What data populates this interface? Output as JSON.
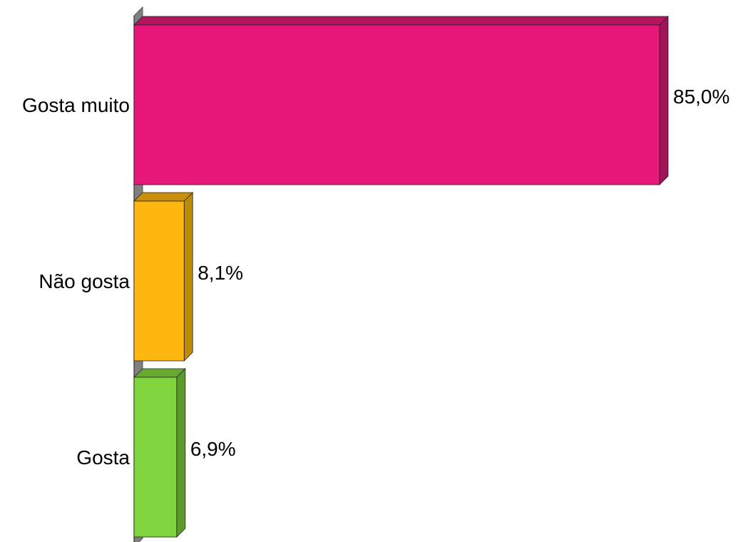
{
  "chart_data": {
    "type": "bar",
    "orientation": "horizontal",
    "style": "3d",
    "title": "",
    "xlabel": "",
    "ylabel": "",
    "grid": false,
    "legend": "none",
    "xlim": [
      0,
      85
    ],
    "categories": [
      "Gosta muito",
      "Não gosta",
      "Gosta"
    ],
    "values": [
      85.0,
      8.1,
      6.9
    ],
    "data_labels": [
      "85,0%",
      "8,1%",
      "6,9%"
    ],
    "colors": [
      "#E8177A",
      "#FFB60F",
      "#80D43D"
    ],
    "side_colors": [
      "#A0145A",
      "#BE8A0B",
      "#5C9B2B"
    ],
    "top_colors": [
      "#B3165E",
      "#C99010",
      "#66A830"
    ],
    "axis_wall_color": "#808080"
  }
}
